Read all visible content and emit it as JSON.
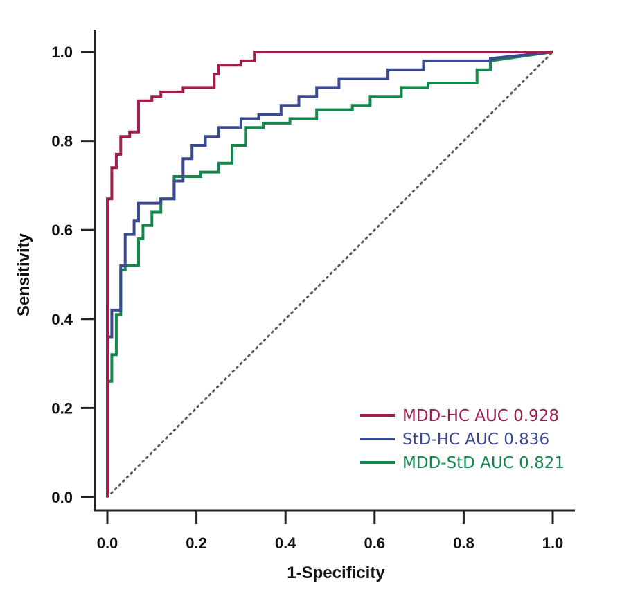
{
  "chart_data": {
    "type": "line",
    "title": "",
    "xlabel": "1-Specificity",
    "ylabel": "Sensitivity",
    "xlim": [
      0,
      1
    ],
    "ylim": [
      0,
      1
    ],
    "xticks": [
      "0.0",
      "0.2",
      "0.4",
      "0.6",
      "0.8",
      "1.0"
    ],
    "yticks": [
      "0.0",
      "0.2",
      "0.4",
      "0.6",
      "0.8",
      "1.0"
    ],
    "grid": false,
    "legend_position": "bottom-right",
    "series": [
      {
        "name": "MDD-HC AUC 0.928",
        "color": "#9e1f4e",
        "points": [
          [
            0,
            0
          ],
          [
            0,
            0.67
          ],
          [
            0.01,
            0.67
          ],
          [
            0.01,
            0.74
          ],
          [
            0.02,
            0.74
          ],
          [
            0.02,
            0.77
          ],
          [
            0.03,
            0.77
          ],
          [
            0.03,
            0.81
          ],
          [
            0.05,
            0.81
          ],
          [
            0.05,
            0.82
          ],
          [
            0.07,
            0.82
          ],
          [
            0.07,
            0.89
          ],
          [
            0.1,
            0.89
          ],
          [
            0.1,
            0.9
          ],
          [
            0.12,
            0.9
          ],
          [
            0.12,
            0.91
          ],
          [
            0.17,
            0.91
          ],
          [
            0.17,
            0.92
          ],
          [
            0.24,
            0.92
          ],
          [
            0.24,
            0.95
          ],
          [
            0.25,
            0.95
          ],
          [
            0.25,
            0.97
          ],
          [
            0.3,
            0.97
          ],
          [
            0.3,
            0.98
          ],
          [
            0.33,
            0.98
          ],
          [
            0.33,
            1.0
          ],
          [
            1.0,
            1.0
          ]
        ]
      },
      {
        "name": "StD-HC AUC 0.836",
        "color": "#3b4a8f",
        "points": [
          [
            0,
            0
          ],
          [
            0,
            0.36
          ],
          [
            0.01,
            0.36
          ],
          [
            0.01,
            0.42
          ],
          [
            0.03,
            0.42
          ],
          [
            0.03,
            0.52
          ],
          [
            0.04,
            0.52
          ],
          [
            0.04,
            0.59
          ],
          [
            0.06,
            0.59
          ],
          [
            0.06,
            0.62
          ],
          [
            0.07,
            0.62
          ],
          [
            0.07,
            0.66
          ],
          [
            0.12,
            0.66
          ],
          [
            0.12,
            0.67
          ],
          [
            0.15,
            0.67
          ],
          [
            0.15,
            0.71
          ],
          [
            0.17,
            0.71
          ],
          [
            0.17,
            0.76
          ],
          [
            0.19,
            0.76
          ],
          [
            0.19,
            0.79
          ],
          [
            0.22,
            0.79
          ],
          [
            0.22,
            0.81
          ],
          [
            0.25,
            0.81
          ],
          [
            0.25,
            0.83
          ],
          [
            0.3,
            0.83
          ],
          [
            0.3,
            0.85
          ],
          [
            0.34,
            0.85
          ],
          [
            0.34,
            0.86
          ],
          [
            0.39,
            0.86
          ],
          [
            0.39,
            0.88
          ],
          [
            0.43,
            0.88
          ],
          [
            0.43,
            0.9
          ],
          [
            0.47,
            0.9
          ],
          [
            0.47,
            0.92
          ],
          [
            0.52,
            0.92
          ],
          [
            0.52,
            0.94
          ],
          [
            0.63,
            0.94
          ],
          [
            0.63,
            0.96
          ],
          [
            0.71,
            0.96
          ],
          [
            0.71,
            0.98
          ],
          [
            0.86,
            0.98
          ],
          [
            0.86,
            0.985
          ],
          [
            1.0,
            1.0
          ]
        ]
      },
      {
        "name": "MDD-StD AUC 0.821",
        "color": "#12894a",
        "points": [
          [
            0,
            0
          ],
          [
            0,
            0.26
          ],
          [
            0.01,
            0.26
          ],
          [
            0.01,
            0.32
          ],
          [
            0.02,
            0.32
          ],
          [
            0.02,
            0.41
          ],
          [
            0.03,
            0.41
          ],
          [
            0.03,
            0.51
          ],
          [
            0.04,
            0.51
          ],
          [
            0.04,
            0.52
          ],
          [
            0.07,
            0.52
          ],
          [
            0.07,
            0.58
          ],
          [
            0.08,
            0.58
          ],
          [
            0.08,
            0.61
          ],
          [
            0.1,
            0.61
          ],
          [
            0.1,
            0.64
          ],
          [
            0.12,
            0.64
          ],
          [
            0.12,
            0.67
          ],
          [
            0.15,
            0.67
          ],
          [
            0.15,
            0.72
          ],
          [
            0.21,
            0.72
          ],
          [
            0.21,
            0.73
          ],
          [
            0.25,
            0.73
          ],
          [
            0.25,
            0.75
          ],
          [
            0.28,
            0.75
          ],
          [
            0.28,
            0.79
          ],
          [
            0.31,
            0.79
          ],
          [
            0.31,
            0.83
          ],
          [
            0.35,
            0.83
          ],
          [
            0.35,
            0.84
          ],
          [
            0.41,
            0.84
          ],
          [
            0.41,
            0.85
          ],
          [
            0.47,
            0.85
          ],
          [
            0.47,
            0.87
          ],
          [
            0.55,
            0.87
          ],
          [
            0.55,
            0.88
          ],
          [
            0.59,
            0.88
          ],
          [
            0.59,
            0.9
          ],
          [
            0.66,
            0.9
          ],
          [
            0.66,
            0.92
          ],
          [
            0.72,
            0.92
          ],
          [
            0.72,
            0.93
          ],
          [
            0.83,
            0.93
          ],
          [
            0.83,
            0.96
          ],
          [
            0.86,
            0.96
          ],
          [
            0.86,
            0.98
          ],
          [
            1.0,
            1.0
          ]
        ]
      }
    ],
    "reference_line": {
      "style": "dotted",
      "color": "#555555",
      "points": [
        [
          0,
          0
        ],
        [
          1,
          1
        ]
      ]
    }
  }
}
